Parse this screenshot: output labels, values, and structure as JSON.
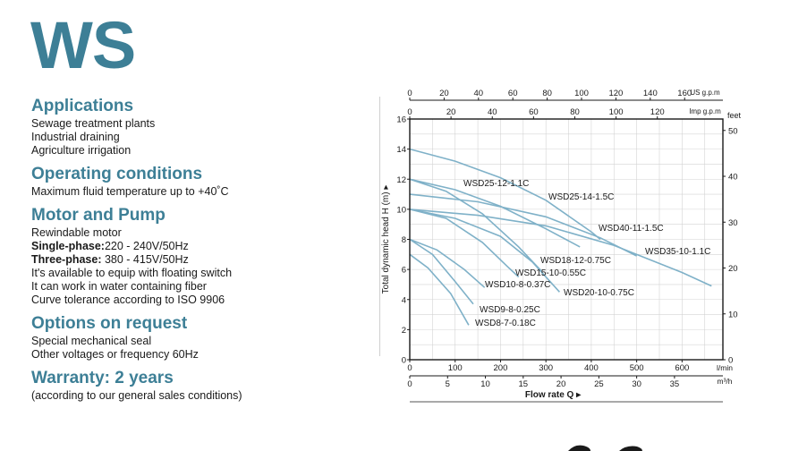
{
  "logo": "WS",
  "sections": {
    "applications": {
      "title": "Applications",
      "lines": [
        "Sewage treatment plants",
        "Industrial draining",
        "Agriculture irrigation"
      ]
    },
    "operating": {
      "title": "Operating conditions",
      "lines": [
        "Maximum fluid temperature up to +40˚C"
      ]
    },
    "motor": {
      "title": "Motor and Pump",
      "line1": "Rewindable motor",
      "single_label": "Single-phase:",
      "single_value": "220 - 240V/50Hz",
      "three_label": "Three-phase:",
      "three_value": " 380 - 415V/50Hz",
      "line4": "It's available to equip with floating switch",
      "line5": "It can work in water containing fiber",
      "line6": "Curve tolerance according to ISO 9906"
    },
    "options": {
      "title": "Options on request",
      "lines": [
        "Special mechanical seal",
        "Other voltages or frequency 60Hz"
      ]
    },
    "warranty": {
      "title": "Warranty:  2 years",
      "note": "(according to our general sales conditions)"
    }
  },
  "chart_data": {
    "type": "line",
    "ylabel": "Total dynamic head H (m)",
    "ylabel_arrow": "▸",
    "xlabel": "Flow rate Q",
    "xlabel_arrow": "▸",
    "y_ticks": [
      "0",
      "2",
      "4",
      "6",
      "8",
      "10",
      "12",
      "14",
      "16"
    ],
    "ylim": [
      0,
      16
    ],
    "x_lmin_ticks": [
      "0",
      "100",
      "200",
      "300",
      "400",
      "500",
      "600"
    ],
    "x_lmin_unit": "l/min",
    "x_m3h_ticks": [
      "0",
      "5",
      "10",
      "15",
      "20",
      "25",
      "30",
      "35"
    ],
    "x_m3h_unit": "m³/h",
    "xlim_lmin": [
      0,
      690
    ],
    "x_usgpm_ticks": [
      "0",
      "20",
      "40",
      "60",
      "80",
      "100",
      "120",
      "140",
      "160"
    ],
    "x_usgpm_unit": "US g.p.m",
    "x_impgpm_ticks": [
      "0",
      "20",
      "40",
      "60",
      "80",
      "100",
      "120"
    ],
    "x_impgpm_unit": "Imp g.p.m",
    "feet_ticks": [
      "0",
      "10",
      "20",
      "30",
      "40",
      "50"
    ],
    "feet_unit": "feet",
    "line_color": "#7fb1c8",
    "series": [
      {
        "name": "WSD25-12-1.1C",
        "x": [
          0,
          100,
          200,
          300,
          375
        ],
        "y": [
          12,
          11.3,
          10.2,
          8.7,
          7.5
        ]
      },
      {
        "name": "WSD25-14-1.5C",
        "x": [
          0,
          100,
          200,
          300,
          400,
          420
        ],
        "y": [
          14,
          13.2,
          12.1,
          10.6,
          8.5,
          8.0
        ]
      },
      {
        "name": "WSD40-11-1.5C",
        "x": [
          0,
          150,
          300,
          420,
          500
        ],
        "y": [
          11,
          10.5,
          9.5,
          8.1,
          6.9
        ]
      },
      {
        "name": "WSD35-10-1.1C",
        "x": [
          0,
          150,
          300,
          450,
          600,
          665
        ],
        "y": [
          10,
          9.6,
          8.9,
          7.6,
          5.8,
          4.9
        ]
      },
      {
        "name": "WSD18-12-0.75C",
        "x": [
          0,
          80,
          160,
          240,
          290
        ],
        "y": [
          12,
          11.2,
          9.7,
          7.5,
          5.9
        ]
      },
      {
        "name": "WSD20-10-0.75C",
        "x": [
          0,
          100,
          200,
          270,
          330
        ],
        "y": [
          10,
          9.4,
          8.2,
          6.5,
          4.5
        ]
      },
      {
        "name": "WSD15-10-0.55C",
        "x": [
          0,
          80,
          160,
          215,
          240
        ],
        "y": [
          10,
          9.4,
          7.8,
          6.2,
          5.5
        ]
      },
      {
        "name": "WSD10-8-0.37C",
        "x": [
          0,
          60,
          120,
          165
        ],
        "y": [
          8,
          7.3,
          6.0,
          4.8
        ]
      },
      {
        "name": "WSD9-8-0.25C",
        "x": [
          0,
          50,
          100,
          140
        ],
        "y": [
          8,
          7.0,
          5.2,
          3.7
        ]
      },
      {
        "name": "WSD8-7-0.18C",
        "x": [
          0,
          40,
          90,
          130
        ],
        "y": [
          7,
          6.1,
          4.4,
          2.3
        ]
      }
    ]
  }
}
